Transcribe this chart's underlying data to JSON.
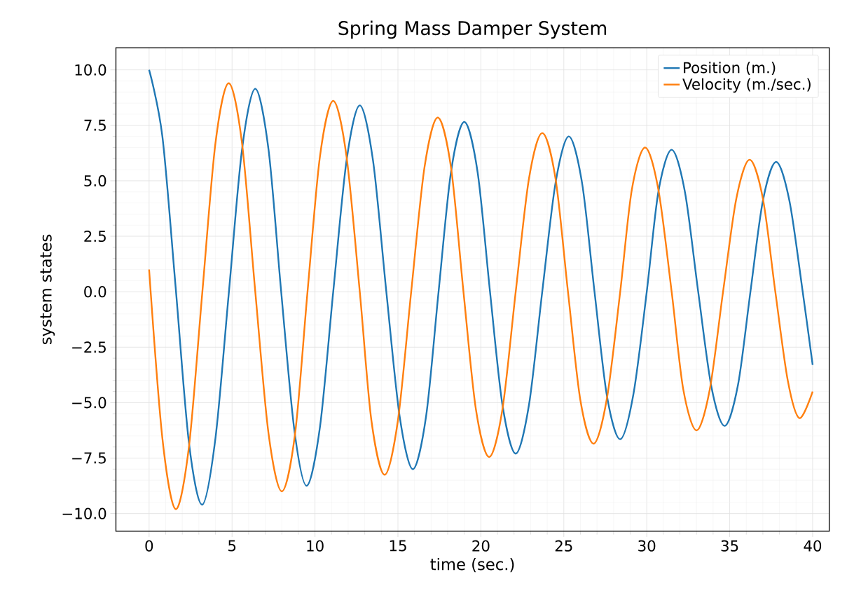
{
  "chart_data": {
    "type": "line",
    "title": "Spring Mass Damper System",
    "xlabel": "time (sec.)",
    "ylabel": "system states",
    "xlim": [
      -2,
      41
    ],
    "ylim": [
      -10.8,
      11.0
    ],
    "xticks": [
      0,
      5,
      10,
      15,
      20,
      25,
      30,
      35,
      40
    ],
    "yticks": [
      {
        "value": -10,
        "label": "−10.0"
      },
      {
        "value": -7.5,
        "label": "−7.5"
      },
      {
        "value": -5,
        "label": "−5.0"
      },
      {
        "value": -2.5,
        "label": "−2.5"
      },
      {
        "value": 0,
        "label": "0.0"
      },
      {
        "value": 2.5,
        "label": "2.5"
      },
      {
        "value": 5,
        "label": "5.0"
      },
      {
        "value": 7.5,
        "label": "7.5"
      },
      {
        "value": 10,
        "label": "10.0"
      }
    ],
    "grid": true,
    "legend": "top right",
    "line_style": "solid",
    "series": [
      {
        "name": "Position (m.)",
        "color": "#1f77b4",
        "x": [
          0,
          0.8,
          1.6,
          2.4,
          3.2,
          4.0,
          4.8,
          5.6,
          6.4,
          7.2,
          7.95,
          8.75,
          9.5,
          10.3,
          11.1,
          11.9,
          12.7,
          13.5,
          14.3,
          15.1,
          15.9,
          16.7,
          17.45,
          18.2,
          19.0,
          19.8,
          20.55,
          21.3,
          22.1,
          22.9,
          23.7,
          24.5,
          25.3,
          26.1,
          26.85,
          27.6,
          28.4,
          29.2,
          30.0,
          30.7,
          31.5,
          32.3,
          33.1,
          33.9,
          34.7,
          35.5,
          36.25,
          37.0,
          37.8,
          38.6,
          39.4,
          40
        ],
        "values": [
          10,
          7.0,
          0.2,
          -6.8,
          -9.6,
          -6.6,
          -0.1,
          6.4,
          9.15,
          6.4,
          0.1,
          -6.2,
          -8.75,
          -6.1,
          0,
          5.9,
          8.4,
          5.9,
          0,
          -5.6,
          -8.0,
          -5.6,
          0,
          5.4,
          7.65,
          5.4,
          0,
          -5.1,
          -7.3,
          -5.1,
          0,
          4.9,
          7.0,
          4.9,
          0,
          -4.7,
          -6.65,
          -4.6,
          0,
          4.5,
          6.4,
          4.5,
          0,
          -4.3,
          -6.05,
          -4.2,
          0,
          4.1,
          5.85,
          4.1,
          0,
          -3.3
        ]
      },
      {
        "name": "Velocity (m./sec.)",
        "color": "#ff7f0e",
        "x": [
          0,
          0.8,
          1.6,
          2.4,
          3.2,
          4.0,
          4.8,
          5.6,
          6.4,
          7.2,
          8.0,
          8.8,
          9.55,
          10.3,
          11.1,
          11.9,
          12.7,
          13.4,
          14.2,
          15.0,
          15.8,
          16.6,
          17.4,
          18.2,
          18.95,
          19.7,
          20.5,
          21.3,
          22.1,
          22.9,
          23.7,
          24.5,
          25.25,
          26.0,
          26.8,
          27.6,
          28.4,
          29.1,
          29.9,
          30.7,
          31.5,
          32.2,
          33.0,
          33.8,
          34.6,
          35.4,
          36.2,
          37.0,
          37.75,
          38.5,
          39.2,
          40
        ],
        "values": [
          1.0,
          -6.6,
          -9.8,
          -7.0,
          -0.1,
          6.7,
          9.4,
          6.7,
          0,
          -6.4,
          -9.0,
          -6.4,
          0,
          6.1,
          8.6,
          6.1,
          0,
          -5.8,
          -8.25,
          -5.8,
          0,
          5.6,
          7.85,
          5.6,
          0,
          -5.3,
          -7.45,
          -5.3,
          0,
          5.1,
          7.15,
          5.1,
          0,
          -4.9,
          -6.85,
          -4.8,
          0,
          4.6,
          6.5,
          4.6,
          0,
          -4.4,
          -6.25,
          -4.4,
          0,
          4.2,
          5.95,
          4.2,
          0,
          -4.0,
          -5.7,
          -4.5
        ]
      }
    ]
  }
}
